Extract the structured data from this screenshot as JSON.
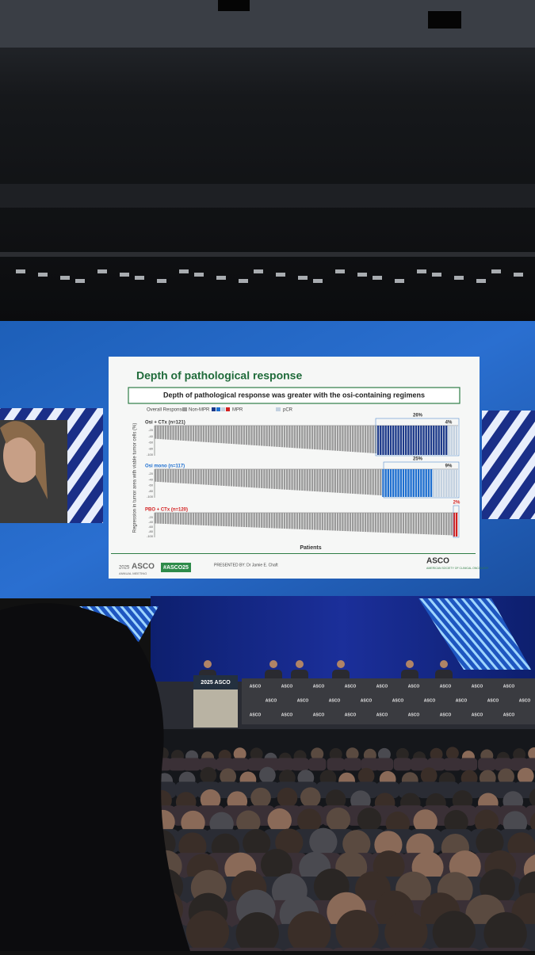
{
  "slide": {
    "title": "Depth of pathological response",
    "headline": "Depth of pathological response was greater with the osi-containing regimens",
    "legend": {
      "label": "Overall Response:",
      "non_mpr": "Non-MPR",
      "mpr": "MPR",
      "pcr": "pCR"
    },
    "y_axis_label": "Regression in tumor area with viable tumor cells (%)",
    "y_ticks": [
      "-20",
      "-40",
      "-60",
      "-80",
      "-100"
    ],
    "x_axis_label": "Patients",
    "panels": [
      {
        "label": "Osi + CTx (n=121)",
        "mpr": "26%",
        "pcr": "4%"
      },
      {
        "label": "Osi mono (n=117)",
        "mpr": "25%",
        "pcr": "9%"
      },
      {
        "label": "PBO + CTx (n=120)",
        "mpr": "2%"
      }
    ],
    "footer": {
      "meeting_year": "2025",
      "meeting": "ASCO",
      "meeting_sub": "ANNUAL MEETING",
      "hashtag": "#ASCO25",
      "presented_by": "PRESENTED BY: Dr Jamie E. Chaft",
      "org": "ASCO",
      "org_sub": "AMERICAN SOCIETY OF CLINICAL ONCOLOGY"
    }
  },
  "stage": {
    "podium": "2025 ASCO",
    "table_logo": "ASCO"
  }
}
